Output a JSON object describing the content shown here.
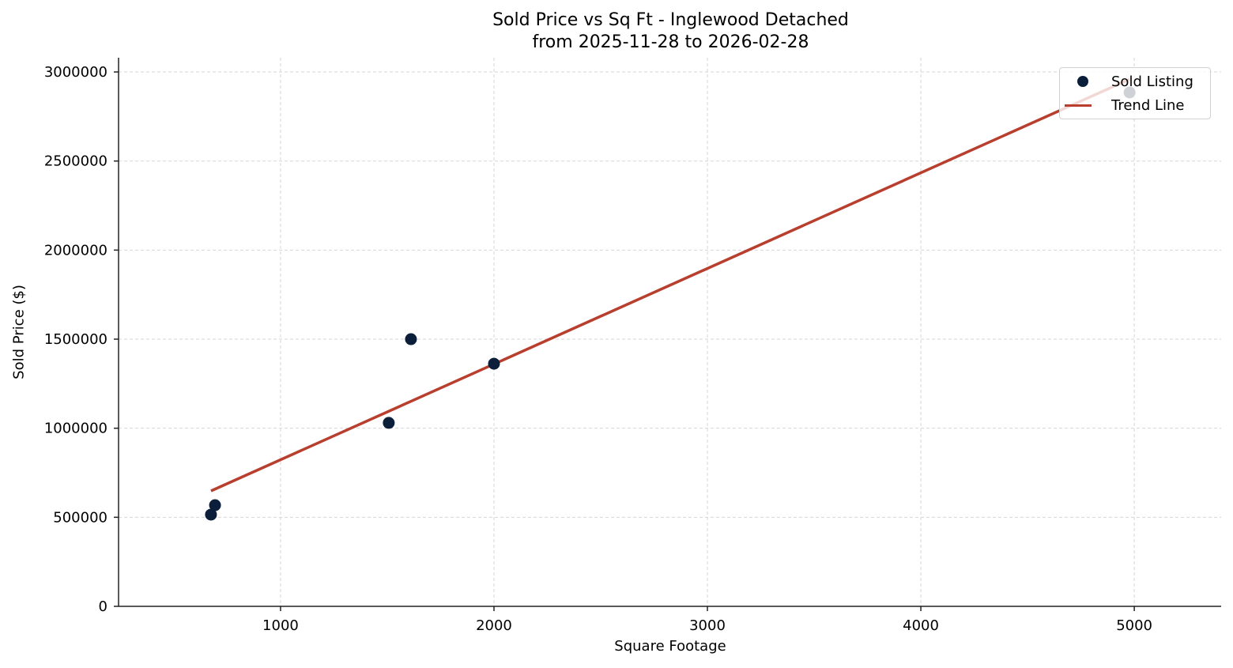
{
  "chart_data": {
    "type": "scatter",
    "title": "Sold Price vs Sq Ft - Inglewood Detached",
    "subtitle": "from 2025-11-28 to 2026-02-28",
    "xlabel": "Square Footage",
    "ylabel": "Sold Price ($)",
    "xlim": [
      241,
      5407
    ],
    "ylim": [
      0,
      3080000
    ],
    "xticks": [
      1000,
      2000,
      3000,
      4000,
      5000
    ],
    "yticks": [
      0,
      500000,
      1000000,
      1500000,
      2000000,
      2500000,
      3000000
    ],
    "grid": true,
    "legend_position": "upper right",
    "series": [
      {
        "name": "Sold Listing",
        "type": "scatter",
        "color": "#0b1f3a",
        "points": [
          {
            "x": 674,
            "y": 515000
          },
          {
            "x": 693,
            "y": 568000
          },
          {
            "x": 1507,
            "y": 1030000
          },
          {
            "x": 1611,
            "y": 1500000
          },
          {
            "x": 2000,
            "y": 1362000
          },
          {
            "x": 4978,
            "y": 2885000
          }
        ]
      },
      {
        "name": "Trend Line",
        "type": "line",
        "color": "#b83e2d",
        "points": [
          {
            "x": 674,
            "y": 648000
          },
          {
            "x": 4978,
            "y": 2959000
          }
        ]
      }
    ]
  },
  "header": {
    "title": "Sold Price vs Sq Ft - Inglewood Detached",
    "subtitle": "from 2025-11-28 to 2026-02-28"
  },
  "axes": {
    "xlabel": "Square Footage",
    "ylabel": "Sold Price ($)"
  },
  "legend": {
    "items": [
      {
        "label": "Sold Listing",
        "icon": "circle-marker-icon"
      },
      {
        "label": "Trend Line",
        "icon": "line-marker-icon"
      }
    ]
  }
}
